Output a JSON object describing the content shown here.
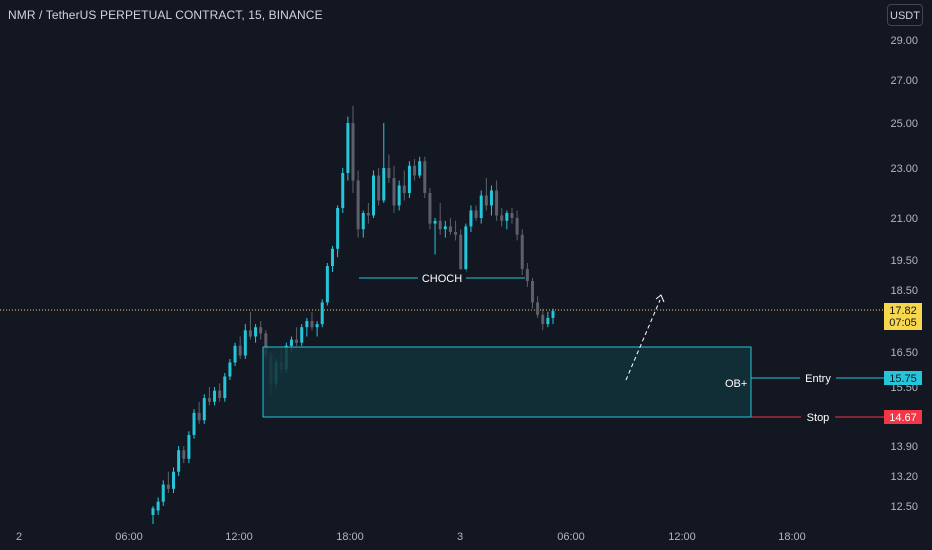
{
  "header": {
    "title": "NMR / TetherUS PERPETUAL CONTRACT, 15, BINANCE",
    "currency": "USDT"
  },
  "colors": {
    "background": "#131722",
    "up": "#26c6da",
    "down": "#5d606b",
    "zone_border": "#26c6da",
    "zone_fill": "#12323a",
    "stop": "#f23645",
    "price_line": "#f7d74c",
    "text": "#b2b5be"
  },
  "chart_data": {
    "type": "candlestick",
    "y_ticks": [
      "29.00",
      "27.00",
      "25.00",
      "23.00",
      "21.00",
      "19.50",
      "18.50",
      "16.50",
      "15.50",
      "13.90",
      "13.20",
      "12.50"
    ],
    "x_ticks": [
      "2",
      "06:00",
      "12:00",
      "18:00",
      "3",
      "06:00",
      "12:00",
      "18:00"
    ],
    "current_price": {
      "value": "17.82",
      "countdown": "07:05"
    },
    "entry": {
      "label": "Entry",
      "value": "15.75"
    },
    "stop": {
      "label": "Stop",
      "value": "14.67"
    },
    "order_block": {
      "label": "OB+",
      "top": 16.6,
      "bottom": 14.67
    },
    "choch": {
      "label": "CHOCH",
      "level": 19.0
    },
    "projection": {
      "from": 15.5,
      "to": 18.4
    },
    "candles": [
      [
        12.3,
        12.5,
        12.1,
        12.45
      ],
      [
        12.4,
        12.7,
        12.3,
        12.6
      ],
      [
        12.6,
        13.1,
        12.5,
        13.0
      ],
      [
        13.0,
        13.3,
        12.8,
        12.9
      ],
      [
        12.9,
        13.4,
        12.8,
        13.3
      ],
      [
        13.3,
        13.9,
        13.2,
        13.8
      ],
      [
        13.8,
        13.9,
        13.5,
        13.6
      ],
      [
        13.6,
        14.3,
        13.5,
        14.2
      ],
      [
        14.2,
        14.9,
        14.1,
        14.8
      ],
      [
        14.8,
        15.1,
        14.5,
        14.6
      ],
      [
        14.6,
        15.3,
        14.5,
        15.2
      ],
      [
        15.2,
        15.5,
        15.0,
        15.1
      ],
      [
        15.1,
        15.5,
        15.0,
        15.4
      ],
      [
        15.4,
        15.6,
        15.1,
        15.2
      ],
      [
        15.2,
        15.9,
        15.1,
        15.8
      ],
      [
        15.8,
        16.3,
        15.7,
        16.2
      ],
      [
        16.2,
        16.8,
        16.1,
        16.7
      ],
      [
        16.7,
        17.0,
        16.3,
        16.4
      ],
      [
        16.4,
        17.4,
        16.3,
        17.2
      ],
      [
        17.2,
        17.8,
        16.9,
        17.0
      ],
      [
        17.0,
        17.4,
        16.8,
        17.3
      ],
      [
        17.3,
        17.5,
        16.9,
        17.1
      ],
      [
        17.1,
        17.2,
        16.3,
        16.4
      ],
      [
        16.4,
        16.5,
        15.3,
        15.6
      ],
      [
        15.6,
        16.3,
        15.5,
        16.2
      ],
      [
        16.2,
        16.6,
        15.9,
        16.0
      ],
      [
        16.0,
        16.8,
        15.9,
        16.7
      ],
      [
        16.7,
        17.0,
        16.5,
        16.9
      ],
      [
        16.9,
        17.3,
        16.7,
        16.8
      ],
      [
        16.8,
        17.4,
        16.7,
        17.3
      ],
      [
        17.3,
        17.6,
        17.0,
        17.5
      ],
      [
        17.5,
        17.8,
        17.2,
        17.3
      ],
      [
        17.3,
        17.5,
        17.0,
        17.4
      ],
      [
        17.4,
        18.2,
        17.3,
        18.1
      ],
      [
        18.1,
        19.4,
        18.0,
        19.3
      ],
      [
        19.3,
        20.0,
        19.1,
        19.9
      ],
      [
        19.9,
        21.5,
        19.6,
        21.4
      ],
      [
        21.4,
        23.0,
        21.2,
        22.8
      ],
      [
        22.8,
        25.3,
        22.5,
        25.0
      ],
      [
        25.0,
        25.8,
        22.0,
        22.5
      ],
      [
        22.5,
        22.9,
        20.3,
        20.6
      ],
      [
        20.6,
        21.3,
        20.3,
        21.2
      ],
      [
        21.2,
        21.6,
        20.8,
        21.1
      ],
      [
        21.1,
        22.9,
        21.0,
        22.7
      ],
      [
        22.7,
        23.0,
        21.5,
        21.7
      ],
      [
        21.7,
        25.0,
        21.6,
        23.0
      ],
      [
        23.0,
        23.6,
        22.4,
        22.6
      ],
      [
        22.6,
        23.1,
        21.2,
        21.5
      ],
      [
        21.5,
        22.5,
        21.3,
        22.3
      ],
      [
        22.3,
        22.9,
        21.7,
        22.0
      ],
      [
        22.0,
        23.3,
        21.8,
        23.1
      ],
      [
        23.1,
        23.4,
        22.5,
        22.7
      ],
      [
        22.7,
        23.5,
        22.6,
        23.3
      ],
      [
        23.3,
        23.5,
        21.8,
        22.0
      ],
      [
        22.0,
        22.2,
        20.6,
        20.8
      ],
      [
        20.8,
        21.0,
        19.7,
        20.9
      ],
      [
        20.9,
        21.6,
        20.4,
        20.6
      ],
      [
        20.6,
        20.9,
        20.3,
        20.7
      ],
      [
        20.7,
        21.0,
        20.4,
        20.5
      ],
      [
        20.5,
        20.9,
        20.2,
        20.4
      ],
      [
        20.4,
        20.6,
        19.0,
        19.2
      ],
      [
        19.2,
        20.8,
        19.1,
        20.7
      ],
      [
        20.7,
        21.5,
        20.5,
        21.3
      ],
      [
        21.3,
        21.5,
        20.9,
        21.0
      ],
      [
        21.0,
        22.1,
        20.8,
        21.9
      ],
      [
        21.9,
        22.6,
        21.3,
        21.5
      ],
      [
        21.5,
        22.3,
        21.1,
        22.1
      ],
      [
        22.1,
        22.5,
        20.9,
        21.1
      ],
      [
        21.1,
        21.4,
        20.7,
        20.9
      ],
      [
        20.9,
        21.3,
        20.6,
        21.2
      ],
      [
        21.2,
        21.4,
        20.8,
        21.0
      ],
      [
        21.0,
        21.3,
        20.2,
        20.4
      ],
      [
        20.4,
        20.6,
        19.0,
        19.2
      ],
      [
        19.2,
        19.4,
        18.6,
        18.8
      ],
      [
        18.8,
        18.9,
        17.9,
        18.1
      ],
      [
        18.1,
        18.3,
        17.6,
        17.7
      ],
      [
        17.7,
        17.9,
        17.2,
        17.4
      ],
      [
        17.4,
        17.8,
        17.3,
        17.6
      ],
      [
        17.6,
        17.9,
        17.4,
        17.82
      ]
    ]
  }
}
